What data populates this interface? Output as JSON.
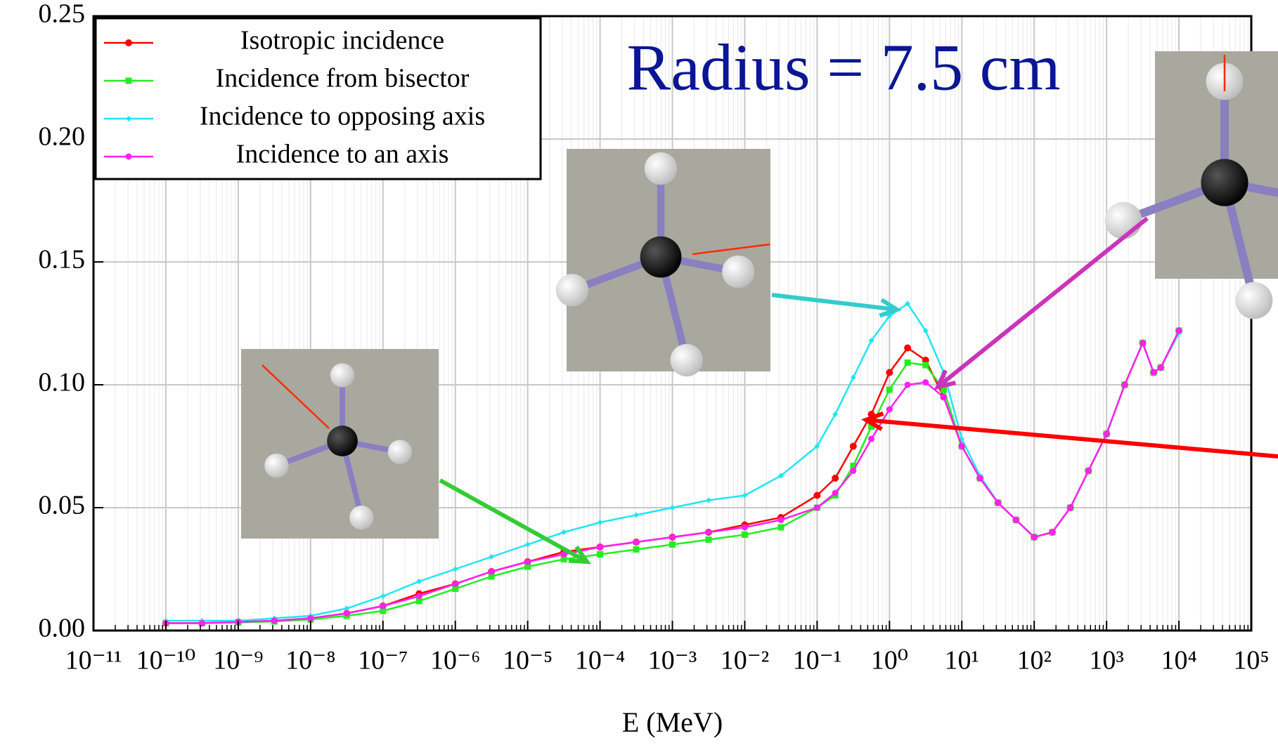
{
  "chart_data": {
    "type": "line",
    "annotation": "Radius = 7.5 cm",
    "xlabel": "E (MeV)",
    "xscale": "log",
    "grid": true,
    "legend": "upper left",
    "xlim": [
      1e-11,
      100000
    ],
    "xticks": [
      {
        "value": 1e-11,
        "label": "10⁻¹¹"
      },
      {
        "value": 1e-10,
        "label": "10⁻¹⁰"
      },
      {
        "value": 1e-09,
        "label": "10⁻⁹"
      },
      {
        "value": 1e-08,
        "label": "10⁻⁸"
      },
      {
        "value": 1e-07,
        "label": "10⁻⁷"
      },
      {
        "value": 1e-06,
        "label": "10⁻⁶"
      },
      {
        "value": 1e-05,
        "label": "10⁻⁵"
      },
      {
        "value": 0.0001,
        "label": "10⁻⁴"
      },
      {
        "value": 0.001,
        "label": "10⁻³"
      },
      {
        "value": 0.01,
        "label": "10⁻²"
      },
      {
        "value": 0.1,
        "label": "10⁻¹"
      },
      {
        "value": 1,
        "label": "10⁰"
      },
      {
        "value": 10,
        "label": "10¹"
      },
      {
        "value": 100,
        "label": "10²"
      },
      {
        "value": 1000,
        "label": "10³"
      },
      {
        "value": 10000,
        "label": "10⁴"
      },
      {
        "value": 100000,
        "label": "10⁵"
      }
    ],
    "ylim": [
      0,
      0.25
    ],
    "yticks": [
      {
        "value": 0,
        "label": "0.00"
      },
      0.05,
      {
        "value": 0.1,
        "label": "0.10"
      },
      0.15,
      {
        "value": 0.2,
        "label": "0.20"
      },
      0.25
    ],
    "x": [
      1e-10,
      3.16e-10,
      1e-09,
      3.16e-09,
      1e-08,
      3.16e-08,
      1e-07,
      3.16e-07,
      1e-06,
      3.16e-06,
      1e-05,
      3.16e-05,
      0.0001,
      0.000316,
      0.001,
      0.00316,
      0.01,
      0.0316,
      0.1,
      0.178,
      0.316,
      0.562,
      1,
      1.78,
      3.16,
      5.62,
      10,
      17.8,
      31.6,
      56.2,
      100,
      178,
      316,
      562,
      1000,
      1780,
      3160,
      4470,
      5620,
      10000
    ],
    "series": [
      {
        "name": "Isotropic incidence",
        "color": "#ff0000",
        "marker": "circle",
        "values": [
          0.003,
          0.003,
          0.0035,
          0.004,
          0.005,
          0.007,
          0.01,
          0.015,
          0.019,
          0.024,
          0.028,
          0.032,
          0.034,
          0.036,
          0.038,
          0.04,
          0.043,
          0.046,
          0.055,
          0.062,
          0.075,
          0.088,
          0.105,
          0.115,
          0.11,
          0.095,
          0.075,
          0.062,
          0.052,
          0.045,
          0.038,
          0.04,
          0.05,
          0.065,
          0.08,
          0.1,
          0.117,
          0.105,
          0.107,
          0.122
        ]
      },
      {
        "name": "Incidence from bisector",
        "color": "#22ee22",
        "marker": "square",
        "values": [
          0.003,
          0.003,
          0.0033,
          0.0037,
          0.0045,
          0.006,
          0.008,
          0.012,
          0.017,
          0.022,
          0.026,
          0.029,
          0.031,
          0.033,
          0.035,
          0.037,
          0.039,
          0.042,
          0.05,
          0.055,
          0.067,
          0.083,
          0.098,
          0.109,
          0.108,
          0.098,
          0.075,
          0.062,
          0.052,
          0.045,
          0.038,
          0.04,
          0.05,
          0.065,
          0.08,
          0.1,
          0.117,
          0.105,
          0.107,
          0.122
        ]
      },
      {
        "name": "Incidence to opposing axis",
        "color": "#22e5f5",
        "marker": "diamond",
        "values": [
          0.004,
          0.004,
          0.004,
          0.005,
          0.006,
          0.009,
          0.014,
          0.02,
          0.025,
          0.03,
          0.035,
          0.04,
          0.044,
          0.047,
          0.05,
          0.053,
          0.055,
          0.063,
          0.075,
          0.088,
          0.103,
          0.118,
          0.128,
          0.133,
          0.122,
          0.105,
          0.078,
          0.063,
          0.052,
          0.045,
          0.038,
          0.04,
          0.05,
          0.065,
          0.08,
          0.1,
          0.117,
          0.105,
          0.107,
          0.121
        ]
      },
      {
        "name": "Incidence to an axis",
        "color": "#ff22ee",
        "marker": "circle",
        "values": [
          0.003,
          0.003,
          0.0035,
          0.004,
          0.005,
          0.007,
          0.01,
          0.014,
          0.019,
          0.024,
          0.028,
          0.031,
          0.034,
          0.036,
          0.038,
          0.04,
          0.042,
          0.045,
          0.05,
          0.056,
          0.065,
          0.078,
          0.09,
          0.1,
          0.101,
          0.095,
          0.075,
          0.062,
          0.052,
          0.045,
          0.038,
          0.04,
          0.05,
          0.065,
          0.08,
          0.1,
          0.117,
          0.105,
          0.107,
          0.122
        ]
      }
    ]
  }
}
